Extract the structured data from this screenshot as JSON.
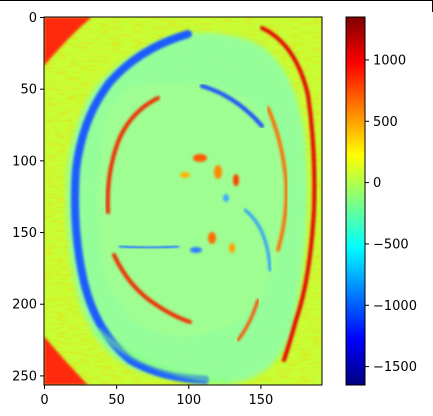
{
  "chart_data": [
    {
      "type": "heatmap",
      "title": "",
      "xlabel": "",
      "ylabel": "",
      "xlim": [
        0,
        192
      ],
      "ylim": [
        256,
        0
      ],
      "x_ticks": [
        0,
        50,
        100,
        150
      ],
      "y_ticks": [
        0,
        50,
        100,
        150,
        200,
        250
      ],
      "colormap": "jet",
      "vmin": -1650,
      "vmax": 1350,
      "features": {
        "background_value": 300,
        "outer_contour_value": -1100,
        "inner_ring_value": 1100,
        "corner_value": 1300
      }
    },
    {
      "type": "colorbar",
      "ticks": [
        1000,
        500,
        0,
        -500,
        -1000,
        -1500
      ],
      "tick_labels": [
        "1000",
        "500",
        "0",
        "−500",
        "−1000",
        "−1500"
      ],
      "range": [
        -1650,
        1350
      ]
    }
  ],
  "colors": {
    "jet_stops": [
      "#00007f",
      "#0000ff",
      "#007fff",
      "#00ffff",
      "#7fff7f",
      "#ffff00",
      "#ff7f00",
      "#ff0000",
      "#7f0000"
    ]
  }
}
